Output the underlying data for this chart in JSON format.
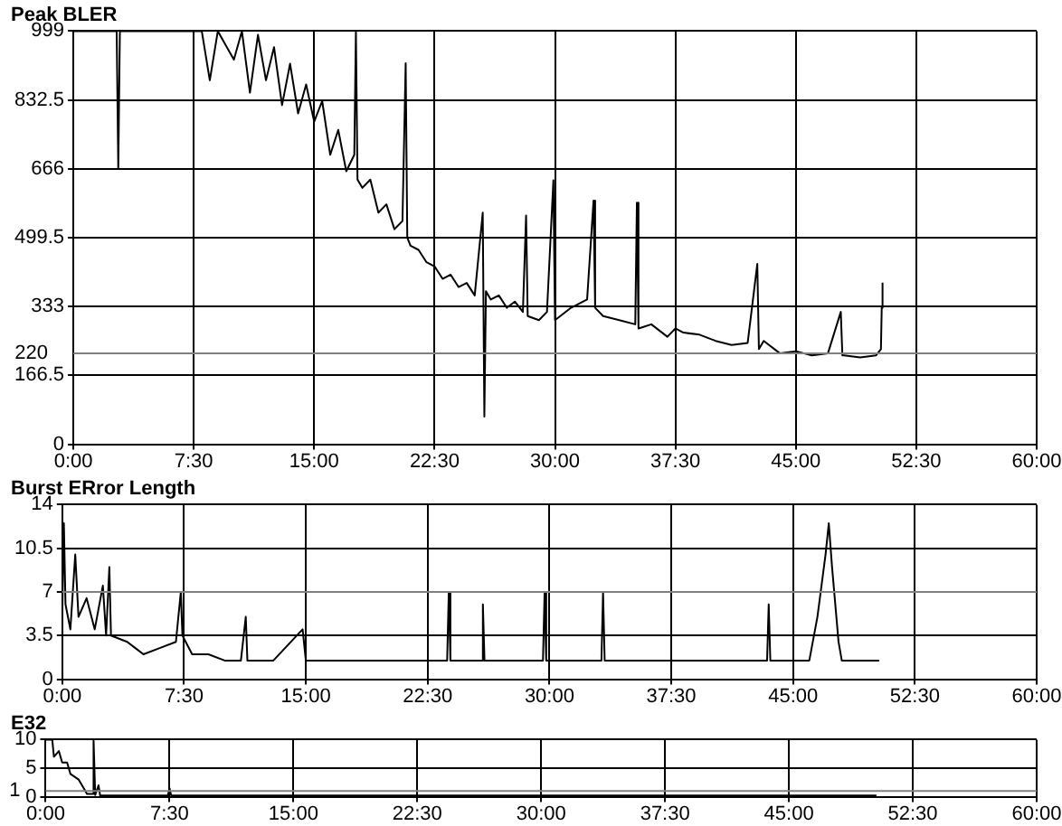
{
  "chart_data": [
    {
      "type": "line",
      "title": "Peak BLER",
      "color": "#000000",
      "marker": "none",
      "grid": true,
      "x": [
        0,
        2.7,
        2.8,
        2.9,
        8,
        8.5,
        9,
        10,
        10.5,
        11,
        11.5,
        12,
        12.5,
        13,
        13.5,
        14,
        14.5,
        15,
        15.5,
        16,
        16.5,
        17,
        17.5,
        17.6,
        17.7,
        18,
        18.5,
        19,
        19.5,
        20,
        20.5,
        20.7,
        20.8,
        21,
        21.5,
        22,
        22.5,
        23,
        23.5,
        24,
        24.5,
        25,
        25.5,
        25.6,
        25.7,
        26,
        26.5,
        27,
        27.5,
        28,
        28.2,
        28.3,
        29,
        29.5,
        29.9,
        30,
        31,
        32,
        32.4,
        32.5,
        33,
        34,
        35,
        35.1,
        35.2,
        36,
        37,
        37.5,
        38,
        39,
        40,
        41,
        42,
        42.6,
        42.7,
        43,
        44,
        45,
        46,
        47,
        47.8,
        47.9,
        48,
        49,
        50,
        50.3,
        50.35,
        50.4
      ],
      "values": [
        999,
        999,
        666,
        999,
        999,
        880,
        999,
        930,
        999,
        850,
        990,
        880,
        960,
        820,
        920,
        800,
        870,
        780,
        830,
        700,
        760,
        660,
        700,
        999,
        640,
        620,
        640,
        560,
        580,
        520,
        540,
        921,
        500,
        480,
        470,
        440,
        430,
        400,
        410,
        380,
        390,
        360,
        560,
        67,
        370,
        350,
        360,
        330,
        345,
        320,
        553,
        310,
        300,
        320,
        638,
        300,
        330,
        350,
        589,
        330,
        310,
        300,
        290,
        584,
        280,
        290,
        260,
        280,
        270,
        265,
        250,
        240,
        245,
        436,
        230,
        250,
        220,
        225,
        215,
        220,
        320,
        215,
        215,
        210,
        215,
        230,
        330,
        391
      ],
      "xlim": [
        0,
        60
      ],
      "xticks": [
        {
          "value": 0,
          "label": "0:00"
        },
        {
          "value": 7.5,
          "label": "7:30"
        },
        {
          "value": 15,
          "label": "15:00"
        },
        {
          "value": 22.5,
          "label": "22:30"
        },
        {
          "value": 30,
          "label": "30:00"
        },
        {
          "value": 37.5,
          "label": "37:30"
        },
        {
          "value": 45,
          "label": "45:00"
        },
        {
          "value": 52.5,
          "label": "52:30"
        },
        {
          "value": 60,
          "label": "60:00"
        }
      ],
      "ylim": [
        0,
        999
      ],
      "yticks": [
        0,
        166.5,
        333,
        499.5,
        666,
        832.5,
        999
      ],
      "ref_lines": [
        {
          "axis": "y",
          "value": 220,
          "label": "220",
          "color": "#808080"
        }
      ]
    },
    {
      "type": "line",
      "title": "Burst ERror Length",
      "color": "#000000",
      "marker": "none",
      "grid": true,
      "x": [
        0,
        0.1,
        0.2,
        0.5,
        0.8,
        1,
        1.5,
        2,
        2.5,
        2.7,
        2.9,
        3,
        4,
        4.5,
        5,
        6,
        7,
        7.3,
        7.4,
        8,
        9,
        10,
        11,
        11.3,
        11.4,
        13,
        14.8,
        15,
        17,
        19,
        21,
        23.7,
        23.8,
        23.9,
        25.8,
        25.9,
        26,
        28,
        29.6,
        29.7,
        29.8,
        33.2,
        33.3,
        33.4,
        36,
        40,
        43.4,
        43.5,
        43.6,
        46,
        46.5,
        47,
        47.2,
        47.4,
        47.8,
        48,
        50.3
      ],
      "values": [
        5,
        12.5,
        6,
        4,
        10,
        5,
        6.5,
        4,
        7.5,
        3.5,
        9,
        3.5,
        3,
        2.5,
        2,
        2.5,
        3,
        7,
        3.5,
        2,
        2,
        1.5,
        1.5,
        5,
        1.5,
        1.5,
        4,
        1.5,
        1.5,
        1.5,
        1.5,
        1.5,
        7,
        1.5,
        1.5,
        6,
        1.5,
        1.5,
        1.5,
        7,
        1.5,
        1.5,
        7,
        1.5,
        1.5,
        1.5,
        1.5,
        6,
        1.5,
        1.5,
        5,
        10,
        12.5,
        9,
        3,
        1.5,
        1.5
      ],
      "xlim": [
        0,
        60
      ],
      "xticks": [
        {
          "value": 0,
          "label": "0:00"
        },
        {
          "value": 7.5,
          "label": "7:30"
        },
        {
          "value": 15,
          "label": "15:00"
        },
        {
          "value": 22.5,
          "label": "22:30"
        },
        {
          "value": 30,
          "label": "30:00"
        },
        {
          "value": 37.5,
          "label": "37:30"
        },
        {
          "value": 45,
          "label": "45:00"
        },
        {
          "value": 52.5,
          "label": "52:30"
        },
        {
          "value": 60,
          "label": "60:00"
        }
      ],
      "ylim": [
        0,
        14
      ],
      "yticks": [
        0,
        3.5,
        7,
        10.5,
        14
      ],
      "ref_lines": [
        {
          "axis": "y",
          "value": 7,
          "color": "#808080"
        }
      ]
    },
    {
      "type": "line",
      "title": "E32",
      "color": "#000000",
      "marker": "none",
      "grid": true,
      "x": [
        0,
        0.4,
        0.5,
        0.8,
        1,
        1.3,
        1.5,
        2,
        2.3,
        2.5,
        2.85,
        2.9,
        3,
        3.2,
        3.3,
        7.4,
        7.5,
        7.6,
        50.3
      ],
      "values": [
        10,
        10,
        7,
        8,
        6,
        6,
        4,
        3,
        1.5,
        0.5,
        0.5,
        10,
        0.3,
        2,
        0.2,
        0.2,
        1.5,
        0.2,
        0.2
      ],
      "xlim": [
        0,
        60
      ],
      "xticks": [
        {
          "value": 0,
          "label": "0:00"
        },
        {
          "value": 7.5,
          "label": "7:30"
        },
        {
          "value": 15,
          "label": "15:00"
        },
        {
          "value": 22.5,
          "label": "22:30"
        },
        {
          "value": 30,
          "label": "30:00"
        },
        {
          "value": 37.5,
          "label": "37:30"
        },
        {
          "value": 45,
          "label": "45:00"
        },
        {
          "value": 52.5,
          "label": "52:30"
        },
        {
          "value": 60,
          "label": "60:00"
        }
      ],
      "ylim": [
        0,
        10
      ],
      "yticks": [
        0,
        5,
        10
      ],
      "ref_lines": [
        {
          "axis": "y",
          "value": 1,
          "label": "1",
          "color": "#808080"
        }
      ]
    }
  ]
}
